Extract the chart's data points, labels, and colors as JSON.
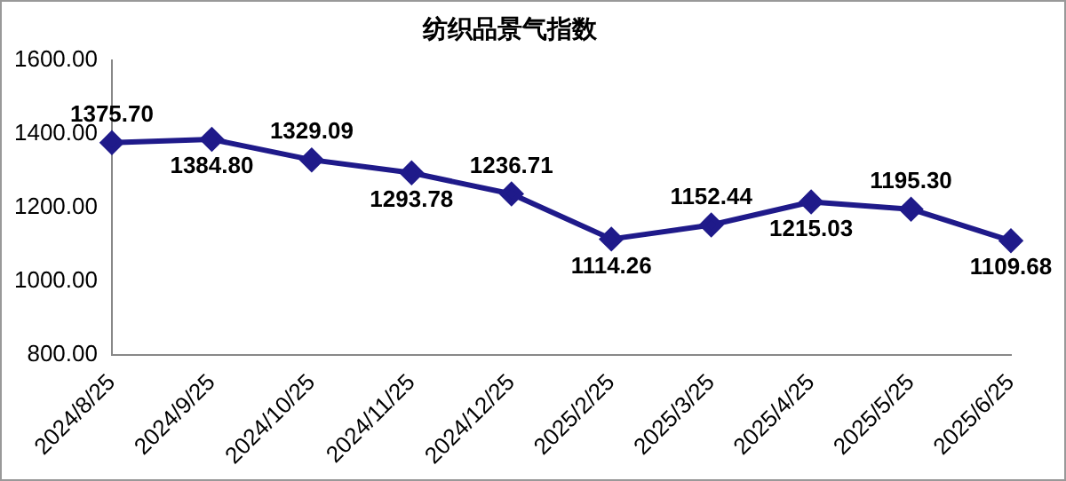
{
  "chart_data": {
    "type": "line",
    "title": "纺织品景气指数",
    "categories": [
      "2024/8/25",
      "2024/9/25",
      "2024/10/25",
      "2024/11/25",
      "2024/12/25",
      "2025/2/25",
      "2025/3/25",
      "2025/4/25",
      "2025/5/25",
      "2025/6/25"
    ],
    "series": [
      {
        "color": "#1f1a8a",
        "values": [
          1375.7,
          1384.8,
          1329.09,
          1293.78,
          1236.71,
          1114.26,
          1152.44,
          1215.03,
          1195.3,
          1109.68
        ],
        "value_labels": [
          "1375.70",
          "1384.80",
          "1329.09",
          "1293.78",
          "1236.71",
          "1114.26",
          "1152.44",
          "1215.03",
          "1195.30",
          "1109.68"
        ]
      }
    ],
    "ylim": [
      800,
      1600
    ],
    "yticks": [
      {
        "value": 800,
        "label": "800.00"
      },
      {
        "value": 1000,
        "label": "1000.00"
      },
      {
        "value": 1200,
        "label": "1200.00"
      },
      {
        "value": 1400,
        "label": "1400.00"
      },
      {
        "value": 1600,
        "label": "1600.00"
      }
    ],
    "grid": false,
    "legend": false,
    "marker": "diamond",
    "line_style": "solid"
  }
}
